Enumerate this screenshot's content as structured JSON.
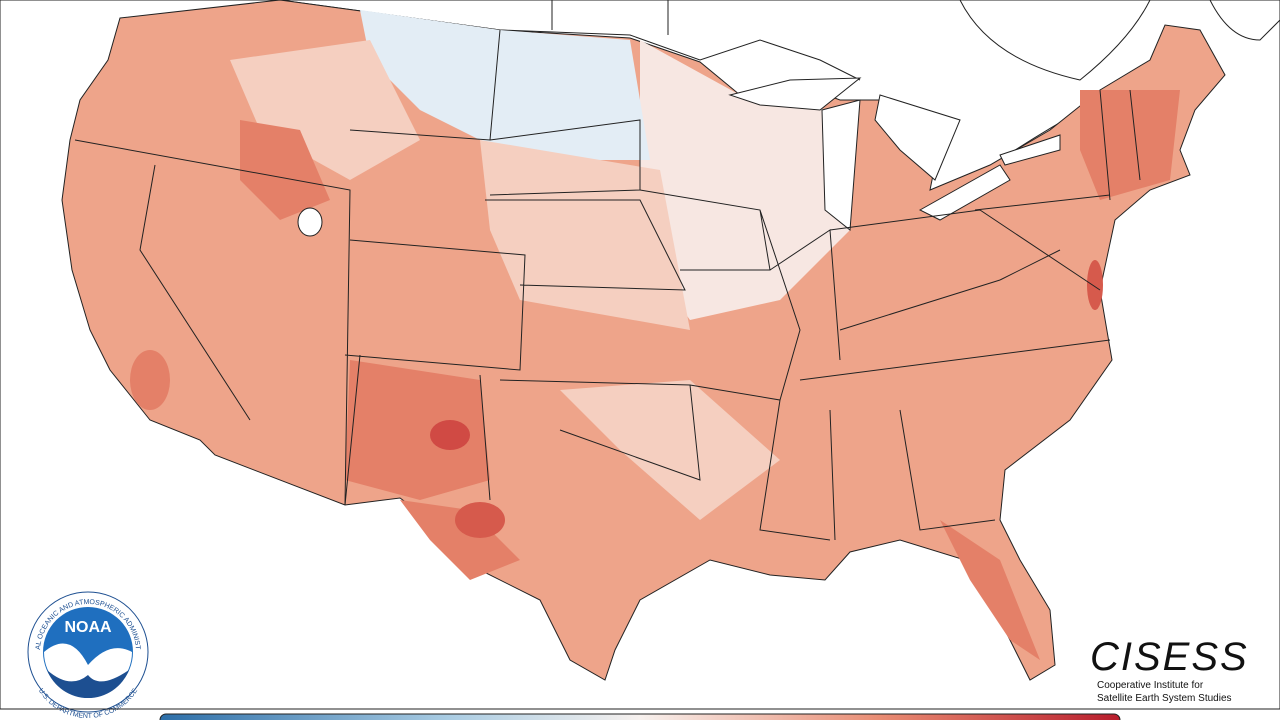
{
  "logos": {
    "noaa": {
      "name": "NOAA",
      "ring_top": "NATIONAL OCEANIC AND ATMOSPHERIC ADMINISTRATION",
      "ring_bottom": "U.S. DEPARTMENT OF COMMERCE"
    },
    "cisess": {
      "name": "CISESS",
      "line1": "Cooperative Institute for",
      "line2": "Satellite Earth System Studies"
    }
  }
}
